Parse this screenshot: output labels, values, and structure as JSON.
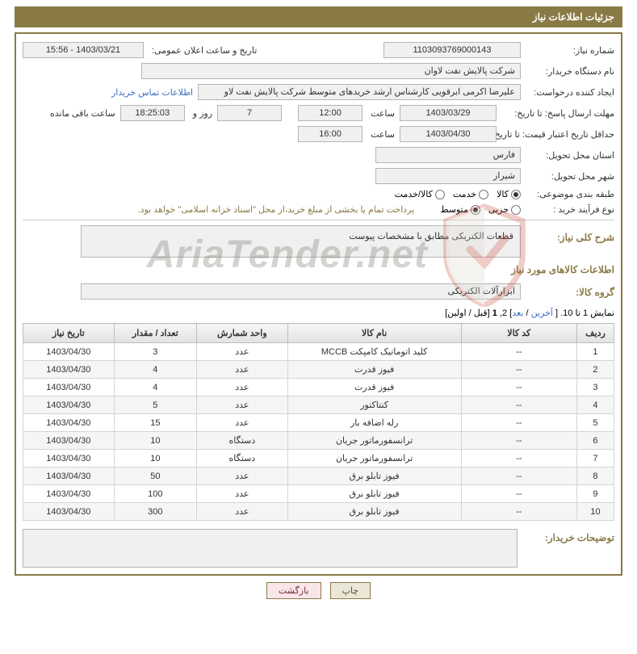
{
  "title_bar": "جزئیات اطلاعات نیاز",
  "labels": {
    "need_number": "شماره نیاز:",
    "announce_datetime": "تاریخ و ساعت اعلان عمومی:",
    "buyer_org": "نام دستگاه خریدار:",
    "requester": "ایجاد کننده درخواست:",
    "contact_link": "اطلاعات تماس خریدار",
    "reply_deadline": "مهلت ارسال پاسخ: تا تاریخ:",
    "hour": "ساعت",
    "day_and": "روز و",
    "remaining": "ساعت باقی مانده",
    "price_validity": "حداقل تاریخ اعتبار قیمت: تا تاریخ:",
    "delivery_province": "استان محل تحویل:",
    "delivery_city": "شهر محل تحویل:",
    "subject_class": "طبقه بندی موضوعی:",
    "purchase_type": "نوع فرآیند خرید :",
    "payment_note": "پرداخت تمام یا بخشی از مبلغ خرید،از محل \"اسناد خزانه اسلامی\" خواهد بود.",
    "overall_desc": "شرح کلی نیاز:",
    "goods_info": "اطلاعات کالاهای مورد نیاز",
    "goods_group": "گروه کالا:",
    "buyer_notes": "توضیحات خریدار:"
  },
  "values": {
    "need_number": "1103093769000143",
    "announce_datetime": "1403/03/21 - 15:56",
    "buyer_org": "شرکت پالایش نفت لاوان",
    "requester": "علیرضا اکرمی ابرقویی کارشناس ارشد خریدهای متوسط شرکت پالایش نفت لاو",
    "reply_date": "1403/03/29",
    "reply_time": "12:00",
    "days_left": "7",
    "time_left": "18:25:03",
    "validity_date": "1403/04/30",
    "validity_time": "16:00",
    "province": "فارس",
    "city": "شیراز",
    "overall_desc": "قطعات الکتریکی مطابق با مشخصات پیوست",
    "goods_group": "ابزارآلات الکتریکی"
  },
  "radios": {
    "subject": [
      {
        "label": "کالا",
        "checked": true
      },
      {
        "label": "خدمت",
        "checked": false
      },
      {
        "label": "کالا/خدمت",
        "checked": false
      }
    ],
    "purchase": [
      {
        "label": "جزیی",
        "checked": false
      },
      {
        "label": "متوسط",
        "checked": true
      }
    ]
  },
  "pagination": {
    "prefix": "نمایش 1 تا 10. [ ",
    "last": "آخرین",
    "sep1": " / ",
    "next": "بعد",
    "mid": "] 2, ",
    "current": "1",
    "suffix": " [قبل / اولین]"
  },
  "table": {
    "columns": [
      "ردیف",
      "کد کالا",
      "نام کالا",
      "واحد شمارش",
      "تعداد / مقدار",
      "تاریخ نیاز"
    ],
    "col_widths": [
      "45px",
      "140px",
      "210px",
      "110px",
      "100px",
      "110px"
    ],
    "rows": [
      [
        "1",
        "--",
        "کلید اتوماتیک کامپکت MCCB",
        "عدد",
        "3",
        "1403/04/30"
      ],
      [
        "2",
        "--",
        "فیوز قدرت",
        "عدد",
        "4",
        "1403/04/30"
      ],
      [
        "3",
        "--",
        "فیوز قدرت",
        "عدد",
        "4",
        "1403/04/30"
      ],
      [
        "4",
        "--",
        "کنتاکتور",
        "عدد",
        "5",
        "1403/04/30"
      ],
      [
        "5",
        "--",
        "رله اضافه بار",
        "عدد",
        "15",
        "1403/04/30"
      ],
      [
        "6",
        "--",
        "ترانسفورماتور جریان",
        "دستگاه",
        "10",
        "1403/04/30"
      ],
      [
        "7",
        "--",
        "ترانسفورماتور جریان",
        "دستگاه",
        "10",
        "1403/04/30"
      ],
      [
        "8",
        "--",
        "فیوز تابلو برق",
        "عدد",
        "50",
        "1403/04/30"
      ],
      [
        "9",
        "--",
        "فیوز تابلو برق",
        "عدد",
        "100",
        "1403/04/30"
      ],
      [
        "10",
        "--",
        "فیوز تابلو برق",
        "عدد",
        "300",
        "1403/04/30"
      ]
    ]
  },
  "buttons": {
    "print": "چاپ",
    "back": "بازگشت"
  },
  "watermark": {
    "text": "AriaTender.net",
    "shield_stroke": "#c74a3a",
    "shield_fill_light": "#d9d4c7"
  },
  "colors": {
    "brand": "#8a7a46",
    "link": "#3a6fc4",
    "input_bg": "#f0f0f0",
    "border": "#b5b5b5"
  }
}
